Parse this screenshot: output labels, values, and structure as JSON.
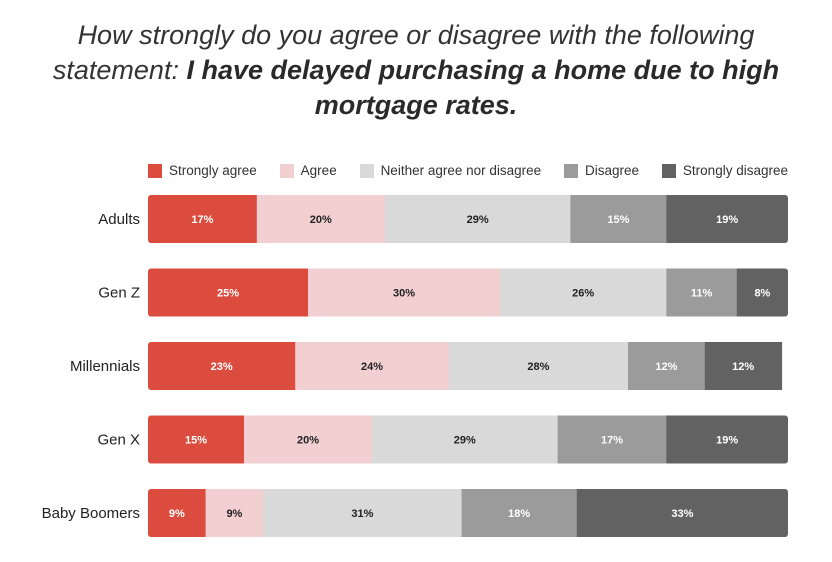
{
  "title": {
    "question": "How strongly do you agree or disagree with the following statement:",
    "statement": "I have delayed purchasing a home due to high mortgage rates."
  },
  "chart_data": {
    "type": "bar",
    "orientation": "horizontal",
    "stacked": true,
    "unit": "%",
    "xlim": [
      0,
      100
    ],
    "grid": false,
    "legend_position": "top",
    "categories": [
      "Adults",
      "Gen Z",
      "Millennials",
      "Gen X",
      "Baby Boomers"
    ],
    "series": [
      {
        "name": "Strongly agree",
        "color": "#db4c3f",
        "label_color": "#ffffff",
        "values": [
          17,
          25,
          23,
          15,
          9
        ]
      },
      {
        "name": "Agree",
        "color": "#f2cfd1",
        "label_color": "#222222",
        "values": [
          20,
          30,
          24,
          20,
          9
        ]
      },
      {
        "name": "Neither agree nor disagree",
        "color": "#d9d9d9",
        "label_color": "#222222",
        "values": [
          29,
          26,
          28,
          29,
          31
        ]
      },
      {
        "name": "Disagree",
        "color": "#9b9b9b",
        "label_color": "#ffffff",
        "values": [
          15,
          11,
          12,
          17,
          18
        ]
      },
      {
        "name": "Strongly disagree",
        "color": "#626262",
        "label_color": "#ffffff",
        "values": [
          19,
          8,
          12,
          19,
          33
        ]
      }
    ]
  }
}
